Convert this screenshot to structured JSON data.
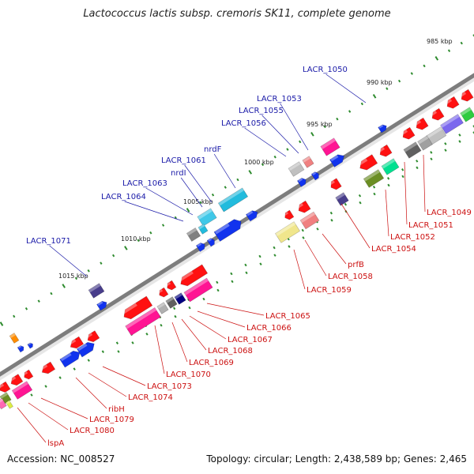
{
  "title": "Lactococcus lactis subsp. cremoris SK11, complete genome",
  "footer": {
    "accession": "Accession: NC_008527",
    "summary": "Topology: circular; Length: 2,438,589 bp; Genes: 2,465"
  },
  "colors": {
    "backbone": "#7d7d7d",
    "tick": "#2e8b2e",
    "label_forward": "#1a1aa8",
    "label_reverse": "#cc1111"
  },
  "kbp_labels": [
    "985 kbp",
    "990 kbp",
    "995 kbp",
    "1000 kbp",
    "1005 kbp",
    "1010 kbp",
    "1015 kbp"
  ],
  "forward_genes": [
    "LACR_1050",
    "LACR_1053",
    "LACR_1055",
    "LACR_1056",
    "nrdF",
    "LACR_1061",
    "nrdI",
    "LACR_1063",
    "LACR_1064",
    "LACR_1071"
  ],
  "reverse_genes": [
    "LACR_1049",
    "LACR_1051",
    "LACR_1052",
    "LACR_1054",
    "prfB",
    "LACR_1058",
    "LACR_1059",
    "LACR_1065",
    "LACR_1066",
    "LACR_1067",
    "LACR_1068",
    "LACR_1069",
    "LACR_1070",
    "LACR_1073",
    "LACR_1074",
    "ribH",
    "LACR_1079",
    "LACR_1080",
    "lspA"
  ]
}
